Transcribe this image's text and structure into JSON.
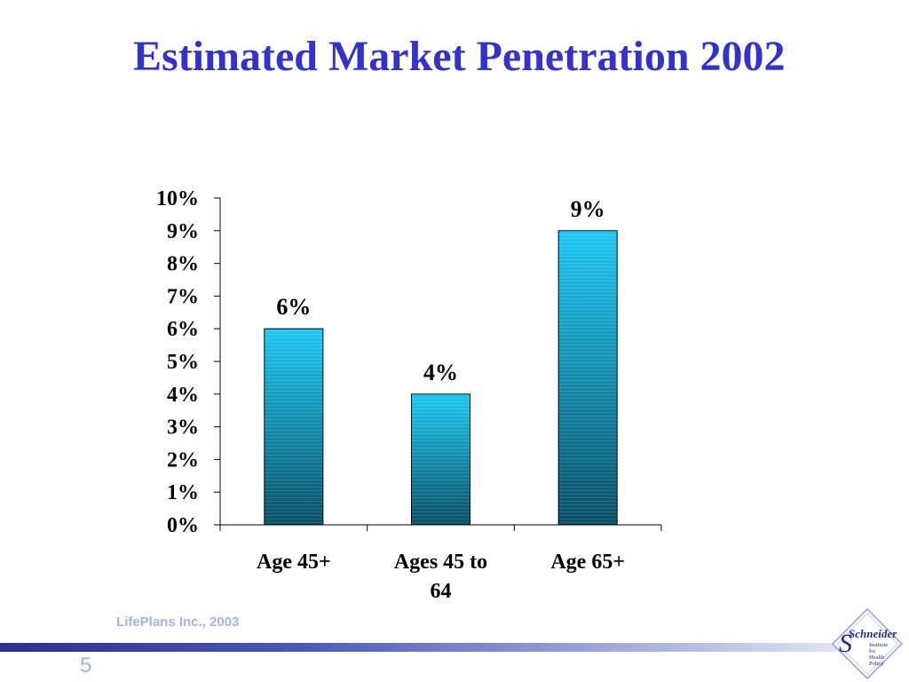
{
  "slide": {
    "title": "Estimated Market Penetration 2002",
    "footer": "LifePlans Inc.,  2003",
    "page_number": "5",
    "logo": {
      "name": "Schneider",
      "subtitle_lines": [
        "Institute",
        "for",
        "Health",
        "Policy"
      ]
    }
  },
  "colors": {
    "title": "#3333cc",
    "bar_top": "#1ec8f2",
    "bar_bottom": "#0a4f66",
    "footer_text": "#9fb4ea"
  },
  "chart_data": {
    "type": "bar",
    "title": "",
    "xlabel": "",
    "ylabel": "",
    "categories": [
      [
        "Age 45+"
      ],
      [
        "Ages 45 to",
        "64"
      ],
      [
        "Age 65+"
      ]
    ],
    "values": [
      6,
      4,
      9
    ],
    "data_labels": [
      "6%",
      "4%",
      "9%"
    ],
    "ylim": [
      0,
      10
    ],
    "y_ticks": [
      0,
      1,
      2,
      3,
      4,
      5,
      6,
      7,
      8,
      9,
      10
    ],
    "y_tick_labels": [
      "0%",
      "1%",
      "2%",
      "3%",
      "4%",
      "5%",
      "6%",
      "7%",
      "8%",
      "9%",
      "10%"
    ],
    "grid": false,
    "legend": "none"
  }
}
